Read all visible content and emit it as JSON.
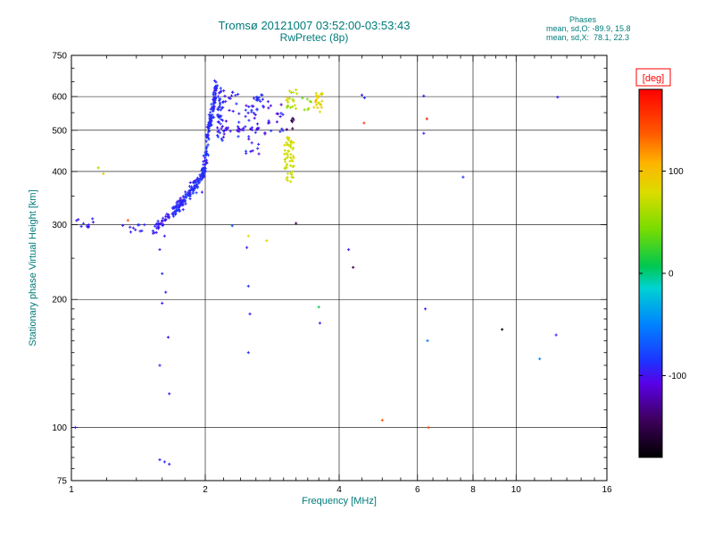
{
  "title": {
    "line1": "Tromsø 20121007 03:52:00-03:53:43",
    "line2": "RwPretec (8p)"
  },
  "annotation": {
    "header": "Phases",
    "line_o": "mean, sd,O: -89.9, 15.8",
    "line_x": "mean, sd,X:  78.1, 22.3"
  },
  "colors": {
    "text_accent": "#007a7a",
    "axis": "#000000",
    "deg_label": "#ff0000",
    "background": "#ffffff"
  },
  "chart_data": {
    "type": "scatter",
    "title": "Tromsø 20121007 03:52:00-03:53:43",
    "subtitle": "RwPretec (8p)",
    "xlabel": "Frequency [MHz]",
    "ylabel": "Stationary phase Virtual Height [km]",
    "x_scale": "log",
    "x_range": [
      1,
      16
    ],
    "x_ticks": [
      1,
      2,
      4,
      6,
      8,
      10,
      16
    ],
    "x_gridlines": [
      2,
      4,
      6,
      8,
      10
    ],
    "x_minor_ticks": [
      1.2,
      1.4,
      1.6,
      1.8,
      2.2,
      2.4,
      2.6,
      2.8,
      3,
      3.2,
      3.4,
      3.6,
      3.8,
      4.5,
      5,
      5.5,
      6.5,
      7,
      7.5,
      8.5,
      9,
      9.5,
      11,
      12,
      13,
      14,
      15
    ],
    "y_scale": "log",
    "y_range": [
      75,
      750
    ],
    "y_ticks": [
      75,
      100,
      200,
      300,
      400,
      500,
      600,
      750
    ],
    "y_gridlines": [
      100,
      200,
      300,
      400,
      500,
      600
    ],
    "y_minor_ticks": [
      80,
      85,
      90,
      95,
      110,
      120,
      130,
      140,
      150,
      160,
      170,
      180,
      190,
      250,
      350,
      450,
      550,
      650,
      700
    ],
    "grid": true,
    "legend_position": "colorbar-right",
    "colorbar": {
      "label": "[deg]",
      "range": [
        -180,
        180
      ],
      "ticks": [
        -100,
        0,
        100
      ],
      "stops": [
        [
          0.0,
          "#000000"
        ],
        [
          0.1,
          "#3c005a"
        ],
        [
          0.2,
          "#5a00e6"
        ],
        [
          0.26,
          "#1e32ff"
        ],
        [
          0.36,
          "#0082ff"
        ],
        [
          0.46,
          "#00d2d2"
        ],
        [
          0.52,
          "#00c850"
        ],
        [
          0.62,
          "#78dc00"
        ],
        [
          0.72,
          "#dcdc00"
        ],
        [
          0.8,
          "#ffb400"
        ],
        [
          0.88,
          "#ff5a00"
        ],
        [
          1.0,
          "#ff0000"
        ]
      ]
    },
    "series_stats": {
      "O_mode": {
        "mean_phase_deg": -89.9,
        "sd_deg": 15.8
      },
      "X_mode": {
        "mean_phase_deg": 78.1,
        "sd_deg": 22.3
      }
    },
    "cluster_format": "[x_min_MHz, x_max_MHz, y_min_km, y_max_km, n_points, phase_mean_deg, phase_sd_deg, mode]",
    "clusters": [
      [
        1.02,
        1.12,
        294,
        312,
        10,
        -95,
        10,
        "box"
      ],
      [
        1.3,
        1.56,
        283,
        300,
        14,
        -95,
        12,
        "box"
      ],
      [
        1.55,
        1.8,
        295,
        345,
        55,
        -95,
        15,
        "diag"
      ],
      [
        1.7,
        2.0,
        318,
        400,
        120,
        -90,
        15,
        "diag"
      ],
      [
        1.97,
        2.12,
        385,
        635,
        130,
        -90,
        15,
        "diag"
      ],
      [
        2.13,
        2.19,
        470,
        630,
        35,
        -90,
        15,
        "box"
      ],
      [
        2.14,
        2.4,
        480,
        620,
        25,
        -95,
        20,
        "box"
      ],
      [
        2.45,
        2.64,
        430,
        600,
        35,
        -95,
        20,
        "box"
      ],
      [
        2.1,
        2.65,
        496,
        507,
        24,
        -100,
        8,
        "box"
      ],
      [
        2.7,
        3.0,
        490,
        575,
        18,
        -100,
        20,
        "box"
      ],
      [
        2.62,
        2.78,
        560,
        608,
        10,
        -90,
        15,
        "box"
      ],
      [
        3.0,
        3.17,
        378,
        482,
        55,
        75,
        12,
        "box"
      ],
      [
        3.04,
        3.22,
        555,
        625,
        22,
        70,
        25,
        "box"
      ],
      [
        3.3,
        3.46,
        558,
        600,
        7,
        55,
        30,
        "box"
      ],
      [
        3.5,
        3.68,
        552,
        612,
        22,
        85,
        30,
        "box"
      ],
      [
        3.02,
        3.18,
        498,
        548,
        6,
        -135,
        25,
        "box"
      ]
    ],
    "point_format": "[freq_MHz, height_km, phase_deg]",
    "points": [
      [
        1.02,
        100,
        -100
      ],
      [
        1.15,
        408,
        55
      ],
      [
        1.18,
        395,
        95
      ],
      [
        1.34,
        307,
        140
      ],
      [
        1.62,
        282,
        -100
      ],
      [
        1.58,
        262,
        -95
      ],
      [
        1.6,
        230,
        -90
      ],
      [
        1.63,
        208,
        -95
      ],
      [
        1.6,
        196,
        -100
      ],
      [
        1.65,
        163,
        -95
      ],
      [
        1.58,
        140,
        -90
      ],
      [
        1.66,
        120,
        -95
      ],
      [
        1.58,
        84,
        -95
      ],
      [
        1.62,
        83,
        -90
      ],
      [
        1.66,
        82,
        -95
      ],
      [
        2.3,
        298,
        -70
      ],
      [
        2.5,
        282,
        80
      ],
      [
        2.48,
        265,
        -95
      ],
      [
        2.5,
        215,
        -90
      ],
      [
        2.52,
        185,
        -95
      ],
      [
        2.5,
        150,
        -90
      ],
      [
        2.75,
        275,
        85
      ],
      [
        3.2,
        302,
        -150
      ],
      [
        3.6,
        192,
        10
      ],
      [
        3.62,
        176,
        -95
      ],
      [
        4.2,
        262,
        -95
      ],
      [
        4.3,
        238,
        -150
      ],
      [
        4.5,
        605,
        -95
      ],
      [
        4.56,
        596,
        -90
      ],
      [
        4.55,
        520,
        150
      ],
      [
        5.0,
        104,
        140
      ],
      [
        6.2,
        602,
        -95
      ],
      [
        6.3,
        532,
        170
      ],
      [
        6.2,
        492,
        -95
      ],
      [
        6.25,
        190,
        -95
      ],
      [
        6.32,
        160,
        -55
      ],
      [
        6.35,
        100,
        150
      ],
      [
        7.6,
        388,
        -90
      ],
      [
        9.3,
        170,
        -170
      ],
      [
        11.3,
        145,
        -50
      ],
      [
        12.3,
        165,
        -95
      ],
      [
        12.4,
        598,
        -95
      ]
    ]
  }
}
